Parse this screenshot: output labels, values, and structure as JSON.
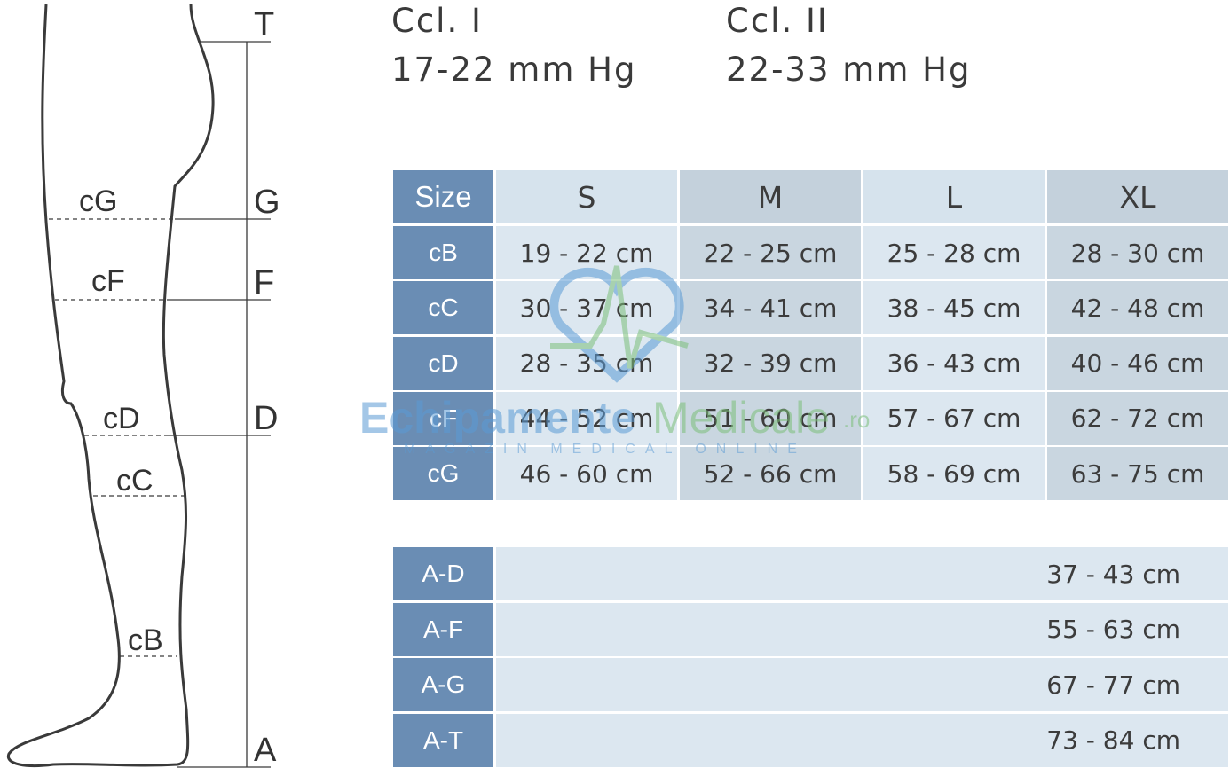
{
  "diagram": {
    "points": [
      "T",
      "G",
      "F",
      "D",
      "A"
    ],
    "circumferences": [
      "cG",
      "cF",
      "cD",
      "cC",
      "cB"
    ]
  },
  "classes": [
    {
      "name": "Ccl. I",
      "pressure": "17-22 mm Hg"
    },
    {
      "name": "Ccl. II",
      "pressure": "22-33 mm Hg"
    }
  ],
  "size_table": {
    "header": [
      "Size",
      "S",
      "M",
      "L",
      "XL"
    ],
    "rows": [
      [
        "cB",
        "19 - 22 cm",
        "22 - 25 cm",
        "25 - 28 cm",
        "28 - 30 cm"
      ],
      [
        "cC",
        "30 - 37 cm",
        "34 - 41 cm",
        "38 - 45 cm",
        "42 - 48 cm"
      ],
      [
        "cD",
        "28 - 35 cm",
        "32 - 39 cm",
        "36 - 43 cm",
        "40 - 46 cm"
      ],
      [
        "cF",
        "44 - 52 cm",
        "51 - 60 cm",
        "57 - 67 cm",
        "62 - 72 cm"
      ],
      [
        "cG",
        "46 - 60 cm",
        "52 - 66 cm",
        "58 - 69 cm",
        "63 - 75 cm"
      ]
    ]
  },
  "length_table": {
    "rows": [
      [
        "A-D",
        "37 - 43 cm"
      ],
      [
        "A-F",
        "55 - 63 cm"
      ],
      [
        "A-G",
        "67 - 77 cm"
      ],
      [
        "A-T",
        "73 - 84 cm"
      ]
    ]
  },
  "watermark": {
    "brand_1": "Echipamente",
    "brand_2": "Medicale",
    "domain": ".ro",
    "tagline": "MAGAZIN MEDICAL ONLINE"
  }
}
